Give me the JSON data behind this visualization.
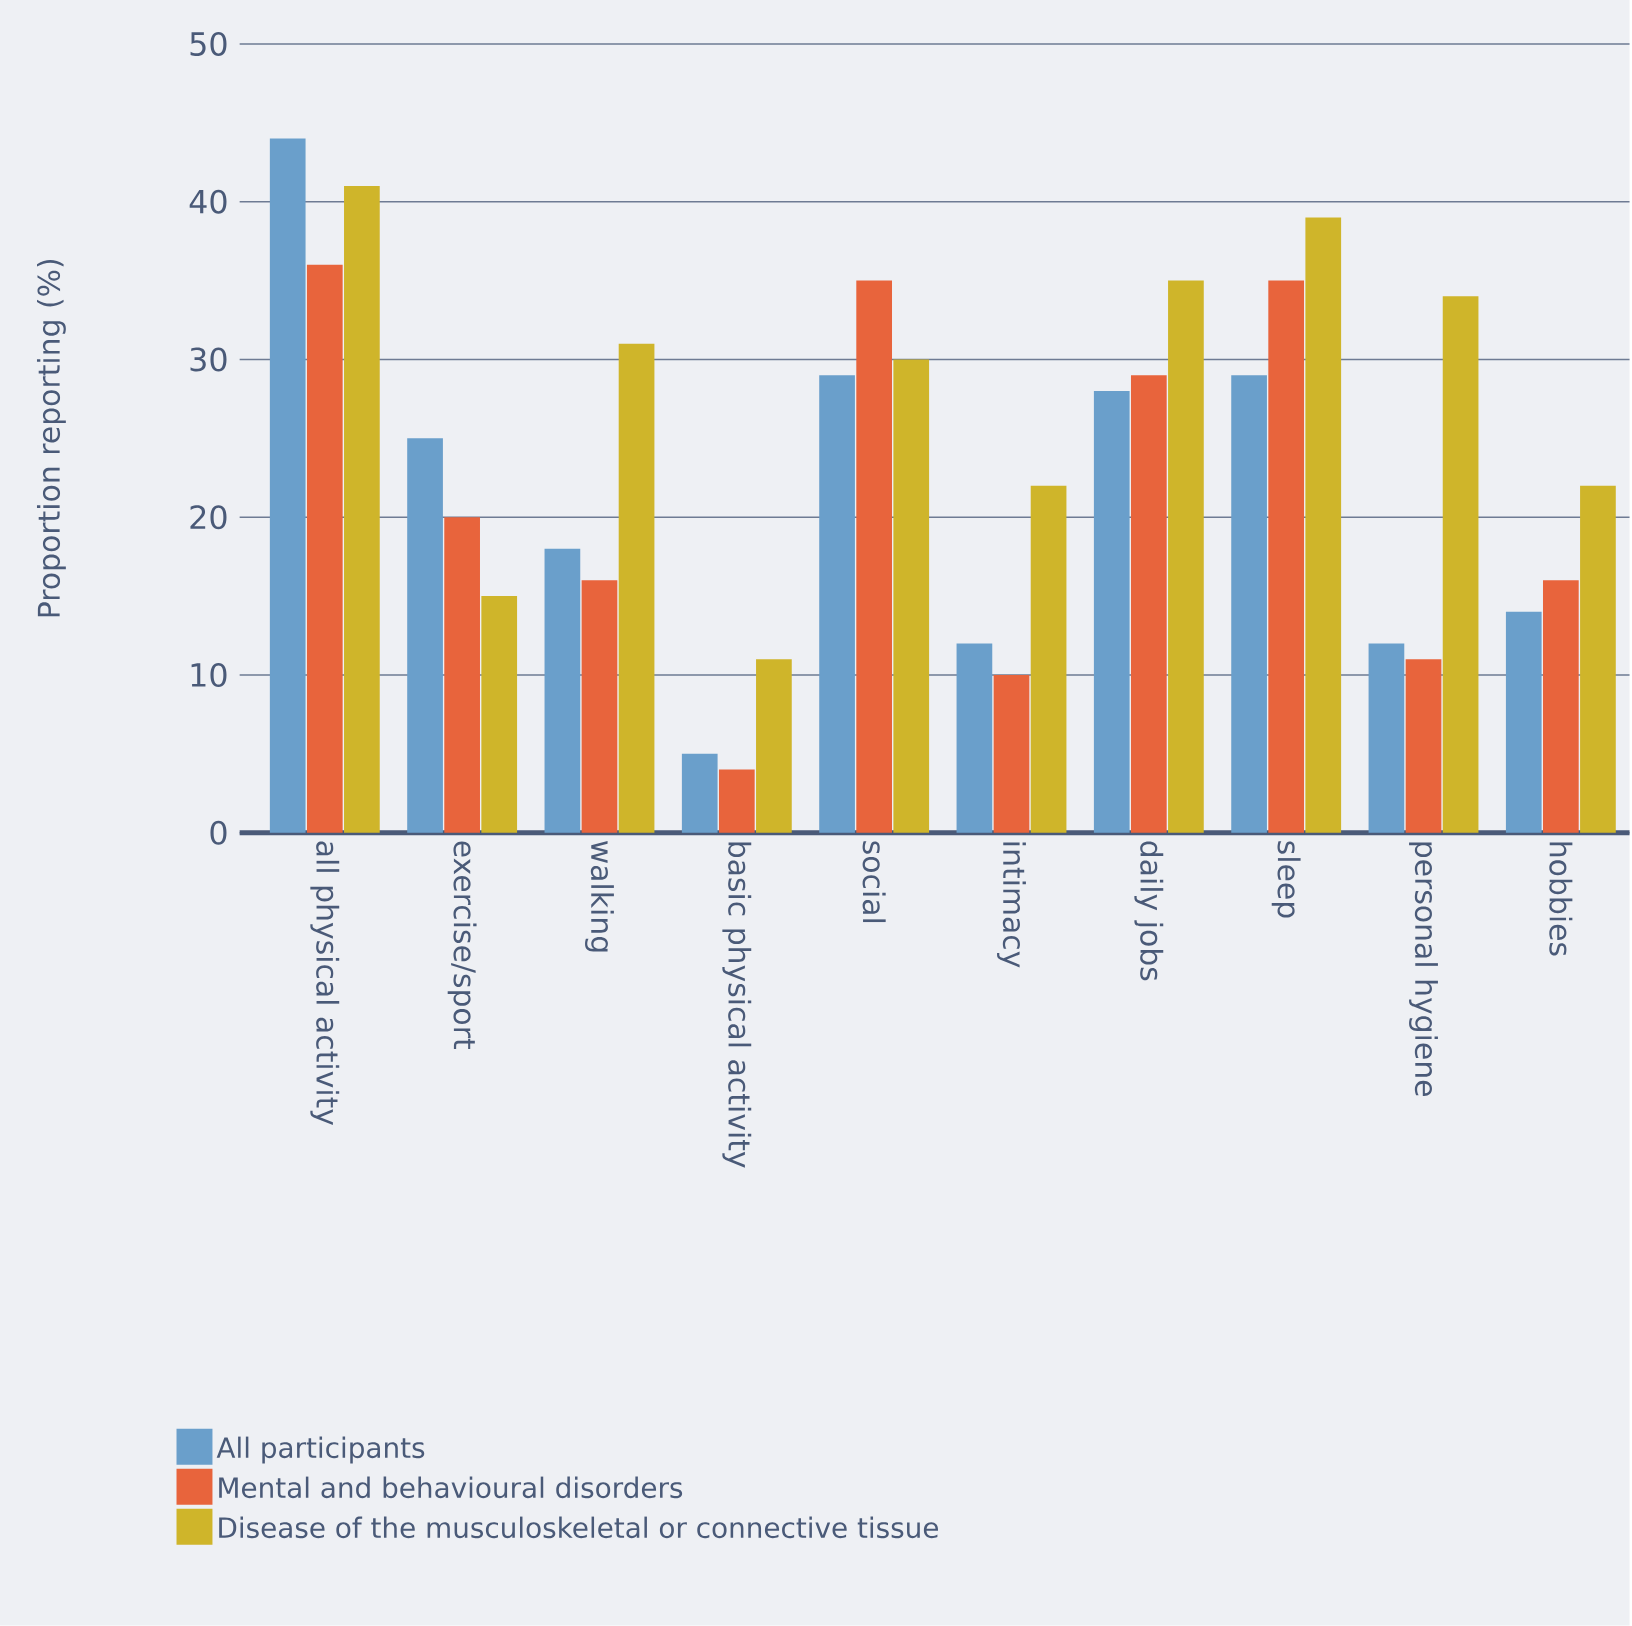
{
  "chart_data": {
    "type": "bar",
    "ylabel": "Proportion reporting (%)",
    "categories": [
      "all physical activity",
      "exercise/sport",
      "walking",
      "basic physical activity",
      "social",
      "intimacy",
      "daily jobs",
      "sleep",
      "personal hygiene",
      "hobbies"
    ],
    "series": [
      {
        "name": "All participants",
        "color": "#6a9fcb",
        "values": [
          44,
          25,
          18,
          5,
          29,
          12,
          28,
          29,
          12,
          14
        ]
      },
      {
        "name": "Mental and behavioural disorders",
        "color": "#e8643c",
        "values": [
          36,
          20,
          16,
          4,
          35,
          10,
          29,
          35,
          11,
          16
        ]
      },
      {
        "name": "Disease of the musculoskeletal or connective tissue",
        "color": "#cfb52a",
        "values": [
          41,
          15,
          31,
          11,
          30,
          22,
          35,
          39,
          34,
          22
        ]
      }
    ],
    "ylim": [
      0,
      50
    ],
    "yticks": [
      0,
      10,
      20,
      30,
      40,
      50
    ],
    "grid": "y",
    "legend": "bottom left"
  }
}
